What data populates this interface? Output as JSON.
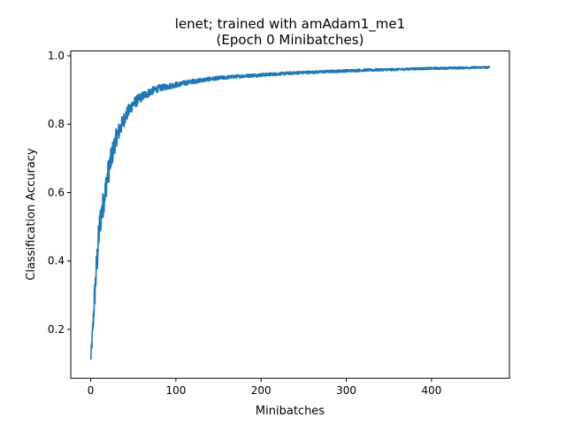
{
  "chart_data": {
    "type": "line",
    "title_line1": "lenet; trained with amAdam1_me1",
    "title_line2": "(Epoch 0 Minibatches)",
    "xlabel": "Minibatches",
    "ylabel": "Classification Accuracy",
    "xlim": [
      -23.4,
      491.4
    ],
    "ylim": [
      0.057,
      1.014
    ],
    "xticks": [
      0,
      100,
      200,
      300,
      400
    ],
    "yticks": [
      0.2,
      0.4,
      0.6,
      0.8,
      1.0
    ],
    "grid": false,
    "legend": "none",
    "color": "#1f77b4",
    "series": [
      {
        "x": [
          0,
          2,
          4,
          6,
          8,
          10,
          12,
          15,
          18,
          20,
          25,
          30,
          35,
          40,
          45,
          50,
          60,
          70,
          80,
          90,
          100,
          120,
          140,
          160,
          180,
          200,
          220,
          240,
          260,
          280,
          300,
          320,
          340,
          360,
          380,
          400,
          420,
          440,
          460,
          468
        ],
        "y": [
          0.11,
          0.18,
          0.27,
          0.35,
          0.42,
          0.49,
          0.53,
          0.57,
          0.62,
          0.65,
          0.71,
          0.76,
          0.79,
          0.82,
          0.84,
          0.86,
          0.88,
          0.895,
          0.905,
          0.91,
          0.915,
          0.925,
          0.932,
          0.937,
          0.941,
          0.944,
          0.947,
          0.95,
          0.952,
          0.954,
          0.956,
          0.958,
          0.959,
          0.96,
          0.962,
          0.963,
          0.964,
          0.965,
          0.966,
          0.966
        ],
        "noise": [
          0.012,
          0.03,
          0.04,
          0.05,
          0.05,
          0.05,
          0.045,
          0.04,
          0.04,
          0.04,
          0.035,
          0.03,
          0.026,
          0.022,
          0.02,
          0.018,
          0.014,
          0.012,
          0.01,
          0.009,
          0.008,
          0.007,
          0.006,
          0.0055,
          0.005,
          0.005,
          0.0045,
          0.0045,
          0.004,
          0.004,
          0.004,
          0.0038,
          0.0036,
          0.0035,
          0.0034,
          0.0033,
          0.0032,
          0.003,
          0.003,
          0.003
        ]
      }
    ]
  }
}
